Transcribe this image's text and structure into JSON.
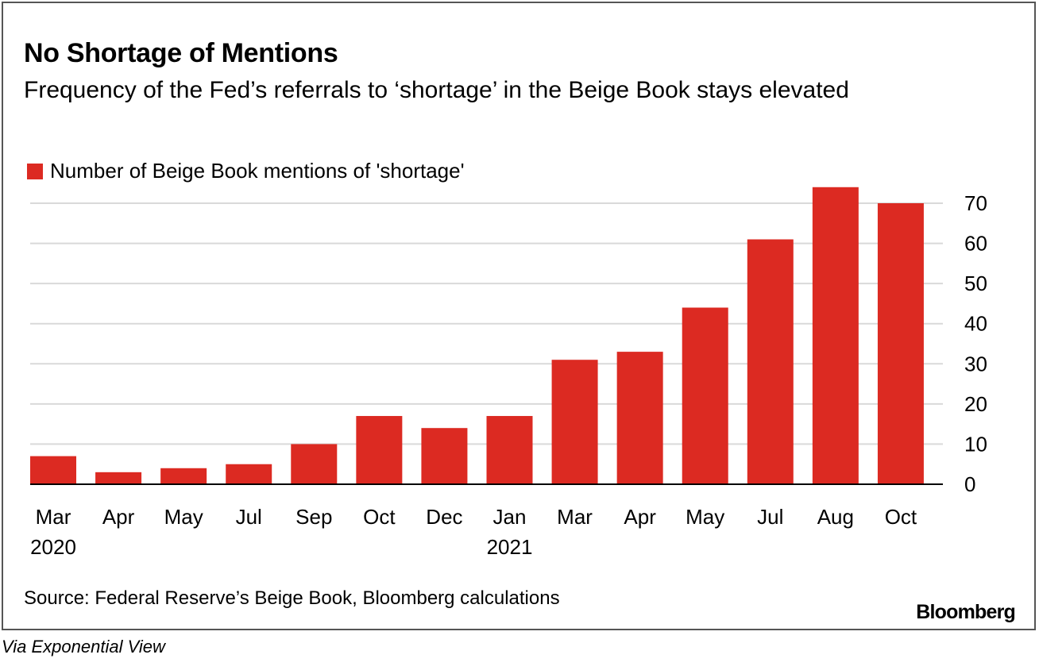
{
  "title": "No Shortage of Mentions",
  "subtitle": "Frequency of the Fed’s referrals to ‘shortage’ in the Beige Book stays elevated",
  "source": "Source: Federal Reserve’s Beige Book, Bloomberg calculations",
  "brand": "Bloomberg",
  "credit": "Via Exponential View",
  "colors": {
    "bar": "#dc2a22",
    "grid": "#d9d9d9",
    "axis": "#000000"
  },
  "chart_data": {
    "type": "bar",
    "categories": [
      "Mar",
      "Apr",
      "May",
      "Jul",
      "Sep",
      "Oct",
      "Dec",
      "Jan",
      "Mar",
      "Apr",
      "May",
      "Jul",
      "Aug",
      "Oct"
    ],
    "year_labels": [
      "2020",
      "",
      "",
      "",
      "",
      "",
      "",
      "2021",
      "",
      "",
      "",
      "",
      "",
      ""
    ],
    "series": [
      {
        "name": "Number of Beige Book mentions of 'shortage'",
        "values": [
          7,
          3,
          4,
          5,
          10,
          17,
          14,
          17,
          31,
          33,
          44,
          61,
          74,
          70
        ]
      }
    ],
    "ylim": [
      0,
      70
    ],
    "yticks": [
      0,
      10,
      20,
      30,
      40,
      50,
      60,
      70
    ],
    "y_axis_side": "right",
    "grid": true,
    "legend_position": "top-left"
  }
}
